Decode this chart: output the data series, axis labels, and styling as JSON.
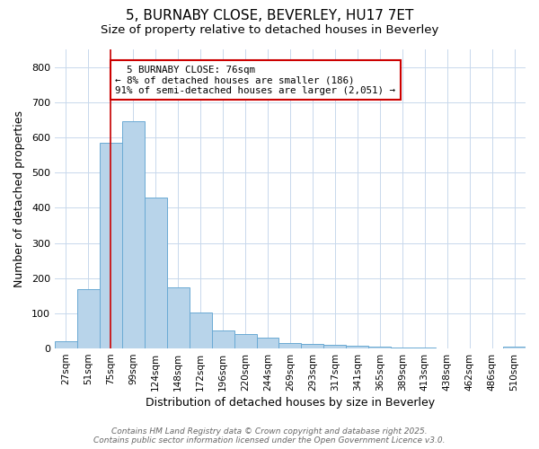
{
  "title_line1": "5, BURNABY CLOSE, BEVERLEY, HU17 7ET",
  "title_line2": "Size of property relative to detached houses in Beverley",
  "xlabel": "Distribution of detached houses by size in Beverley",
  "ylabel": "Number of detached properties",
  "footer": "Contains HM Land Registry data © Crown copyright and database right 2025.\nContains public sector information licensed under the Open Government Licence v3.0.",
  "bin_labels": [
    "27sqm",
    "51sqm",
    "75sqm",
    "99sqm",
    "124sqm",
    "148sqm",
    "172sqm",
    "196sqm",
    "220sqm",
    "244sqm",
    "269sqm",
    "293sqm",
    "317sqm",
    "341sqm",
    "365sqm",
    "389sqm",
    "413sqm",
    "438sqm",
    "462sqm",
    "486sqm",
    "510sqm"
  ],
  "bar_heights": [
    20,
    168,
    585,
    645,
    430,
    173,
    103,
    52,
    40,
    32,
    15,
    12,
    10,
    8,
    5,
    3,
    2,
    1,
    0,
    0,
    5
  ],
  "bar_color": "#b8d4ea",
  "bar_edge_color": "#6aaad4",
  "property_line_x": 2,
  "property_label": "5 BURNABY CLOSE: 76sqm",
  "annotation_line1": "← 8% of detached houses are smaller (186)",
  "annotation_line2": "91% of semi-detached houses are larger (2,051) →",
  "annotation_box_color": "#ffffff",
  "annotation_box_edge": "#cc0000",
  "vline_color": "#cc0000",
  "ylim": [
    0,
    850
  ],
  "yticks": [
    0,
    100,
    200,
    300,
    400,
    500,
    600,
    700,
    800
  ],
  "grid_color": "#c8d8ec",
  "background_color": "#ffffff",
  "plot_bg_color": "#ffffff"
}
